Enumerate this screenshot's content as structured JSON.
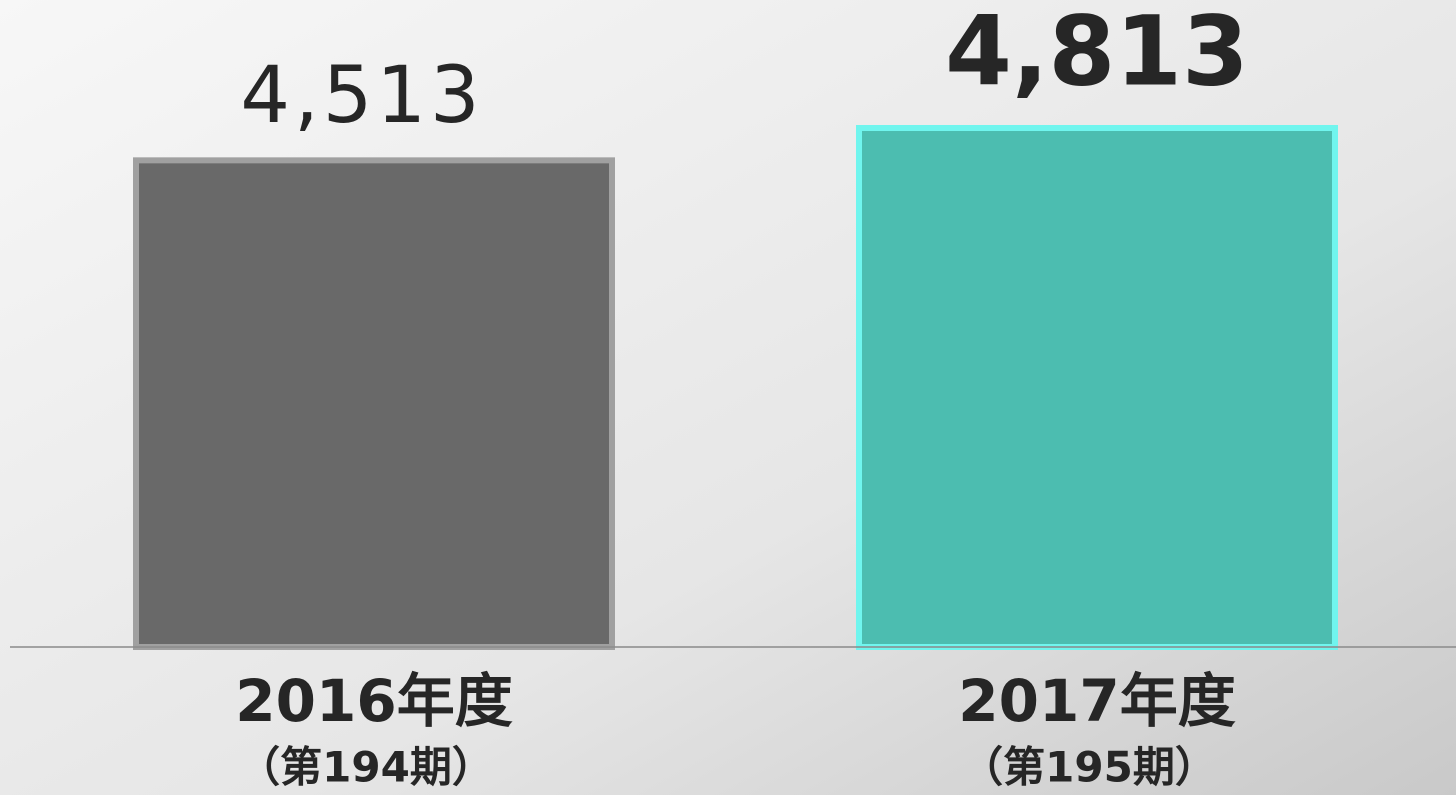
{
  "chart_data": {
    "type": "bar",
    "categories": [
      [
        "2016年度",
        "（第194期）"
      ],
      [
        "2017年度",
        "（第195期）"
      ]
    ],
    "values": [
      4513,
      4813
    ],
    "value_labels": [
      "4,513",
      "4,813"
    ],
    "colors": [
      "#696969",
      "#4cbdb0"
    ],
    "edge_colors": [
      "#a0a0a0",
      "#70f5ee"
    ],
    "ylim": [
      0,
      6000
    ]
  }
}
